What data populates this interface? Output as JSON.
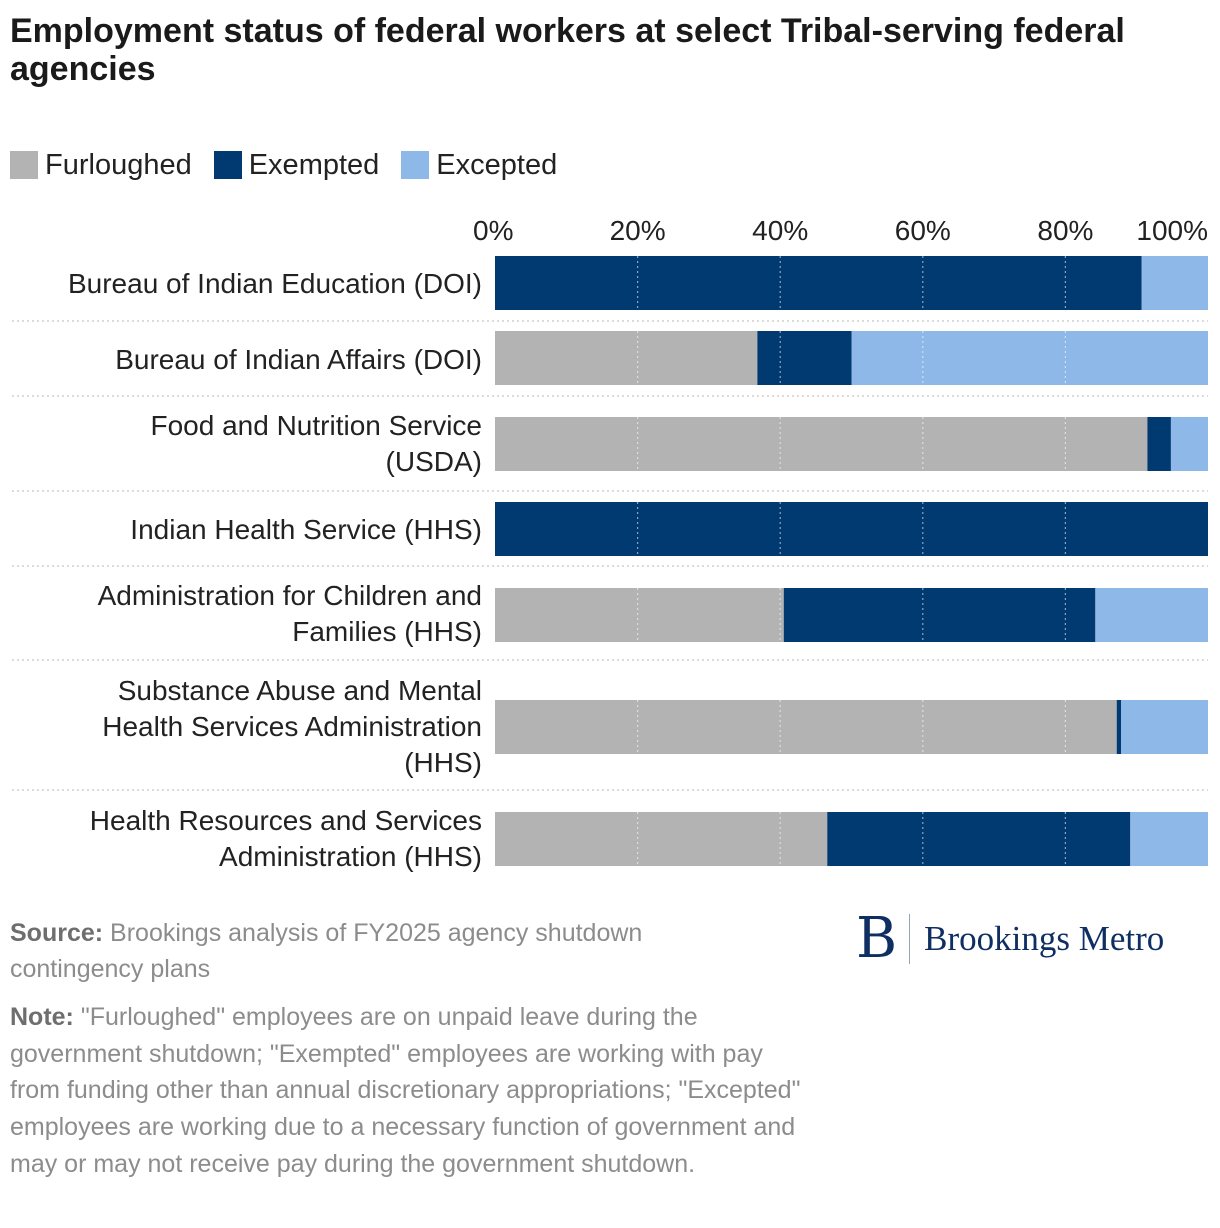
{
  "title": "Employment status of federal workers at select Tribal-serving federal agencies",
  "legend": [
    {
      "label": "Furloughed",
      "color": "#b3b3b3"
    },
    {
      "label": "Exempted",
      "color": "#003a70"
    },
    {
      "label": "Excepted",
      "color": "#8db8e8"
    }
  ],
  "chart_data": {
    "type": "bar",
    "orientation": "horizontal",
    "stacked": true,
    "xlim": [
      0,
      100
    ],
    "x_ticks": [
      "0%",
      "20%",
      "40%",
      "60%",
      "80%",
      "100%"
    ],
    "x_tick_values": [
      0,
      20,
      40,
      60,
      80,
      100
    ],
    "grid": true,
    "legend_placement": "top-left",
    "categories": [
      [
        "Bureau of Indian Education (DOI)"
      ],
      [
        "Bureau of Indian Affairs (DOI)"
      ],
      [
        "Food and Nutrition Service",
        "(USDA)"
      ],
      [
        "Indian Health Service (HHS)"
      ],
      [
        "Administration for Children and",
        "Families (HHS)"
      ],
      [
        "Substance Abuse and Mental",
        "Health Services Administration",
        "(HHS)"
      ],
      [
        "Health Resources and Services",
        "Administration (HHS)"
      ]
    ],
    "series": [
      {
        "name": "Furloughed",
        "color": "#b3b3b3",
        "values": [
          0,
          36.8,
          91.5,
          0,
          40.5,
          87.2,
          46.6
        ]
      },
      {
        "name": "Exempted",
        "color": "#003a70",
        "values": [
          90.7,
          13.2,
          3.3,
          100,
          43.7,
          0.6,
          42.5
        ]
      },
      {
        "name": "Excepted",
        "color": "#8db8e8",
        "values": [
          9.3,
          50.0,
          5.2,
          0,
          15.8,
          12.2,
          10.9
        ]
      }
    ]
  },
  "source_label": "Source:",
  "source_text": " Brookings analysis of FY2025 agency shutdown contingency plans",
  "note_label": "Note:",
  "note_text": " \"Furloughed\" employees are on unpaid leave during the government shutdown; \"Exempted\" employees are working with pay from funding other than annual discretionary appropriations; \"Excepted\" employees are working due to a necessary function of government and may or may not receive pay during the government shutdown.",
  "logo": {
    "mark": "B",
    "text": "Brookings Metro"
  }
}
